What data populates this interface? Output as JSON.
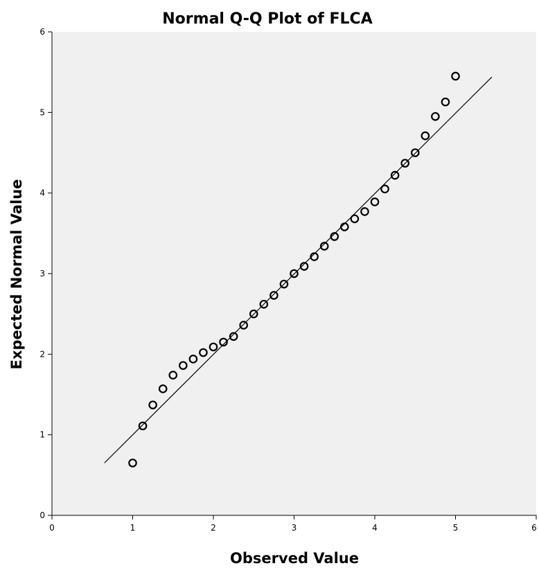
{
  "chart_data": {
    "type": "scatter",
    "title": "Normal Q-Q Plot of FLCA",
    "xlabel": "Observed Value",
    "ylabel": "Expected Normal Value",
    "xlim": [
      0,
      6
    ],
    "ylim": [
      0,
      6
    ],
    "xticks": [
      "0",
      "1",
      "2",
      "3",
      "4",
      "5",
      "6"
    ],
    "yticks": [
      "0",
      "1",
      "2",
      "3",
      "4",
      "5",
      "6"
    ],
    "grid": false,
    "background": "#f0f0f0",
    "marker": "open-circle",
    "reference_line": {
      "x": [
        0.65,
        5.45
      ],
      "y": [
        0.65,
        5.44
      ]
    },
    "points": [
      {
        "x": 1.0,
        "y": 0.65
      },
      {
        "x": 1.125,
        "y": 1.11
      },
      {
        "x": 1.25,
        "y": 1.37
      },
      {
        "x": 1.375,
        "y": 1.57
      },
      {
        "x": 1.5,
        "y": 1.74
      },
      {
        "x": 1.625,
        "y": 1.86
      },
      {
        "x": 1.75,
        "y": 1.94
      },
      {
        "x": 1.875,
        "y": 2.02
      },
      {
        "x": 2.0,
        "y": 2.09
      },
      {
        "x": 2.125,
        "y": 2.15
      },
      {
        "x": 2.25,
        "y": 2.22
      },
      {
        "x": 2.375,
        "y": 2.36
      },
      {
        "x": 2.5,
        "y": 2.5
      },
      {
        "x": 2.625,
        "y": 2.62
      },
      {
        "x": 2.75,
        "y": 2.73
      },
      {
        "x": 2.875,
        "y": 2.87
      },
      {
        "x": 3.0,
        "y": 3.0
      },
      {
        "x": 3.125,
        "y": 3.09
      },
      {
        "x": 3.25,
        "y": 3.21
      },
      {
        "x": 3.375,
        "y": 3.34
      },
      {
        "x": 3.5,
        "y": 3.46
      },
      {
        "x": 3.625,
        "y": 3.58
      },
      {
        "x": 3.75,
        "y": 3.68
      },
      {
        "x": 3.875,
        "y": 3.77
      },
      {
        "x": 4.0,
        "y": 3.89
      },
      {
        "x": 4.125,
        "y": 4.05
      },
      {
        "x": 4.25,
        "y": 4.22
      },
      {
        "x": 4.375,
        "y": 4.37
      },
      {
        "x": 4.5,
        "y": 4.5
      },
      {
        "x": 4.625,
        "y": 4.71
      },
      {
        "x": 4.75,
        "y": 4.95
      },
      {
        "x": 4.875,
        "y": 5.13
      },
      {
        "x": 5.0,
        "y": 5.45
      }
    ]
  }
}
